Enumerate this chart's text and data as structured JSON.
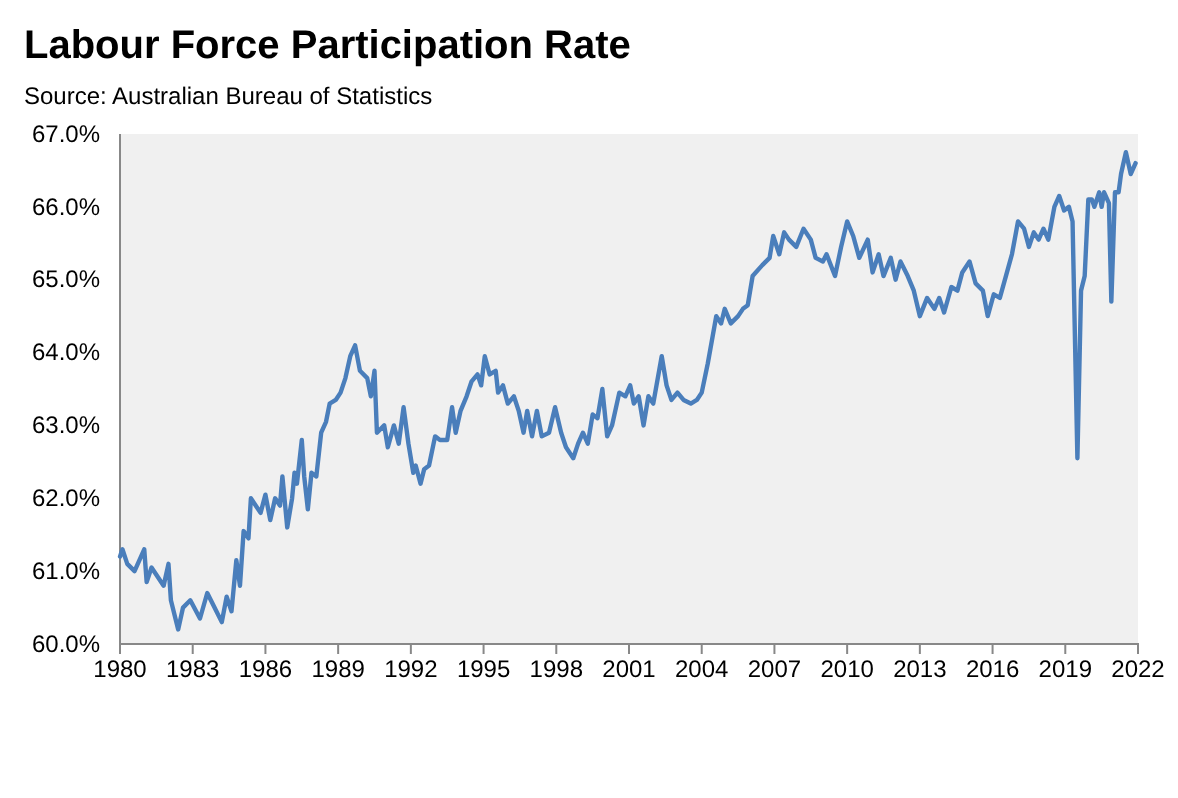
{
  "chart_data": {
    "type": "line",
    "title": "Labour Force Participation Rate",
    "subtitle": "Source: Australian Bureau of Statistics",
    "xlim": [
      1980,
      2022
    ],
    "xticks": [
      1980,
      1983,
      1986,
      1989,
      1992,
      1995,
      1998,
      2001,
      2004,
      2007,
      2010,
      2013,
      2016,
      2019,
      2022
    ],
    "ylim": [
      60,
      67
    ],
    "yticks": [
      {
        "value": 60,
        "label": "60.0%"
      },
      {
        "value": 61,
        "label": "61.0%"
      },
      {
        "value": 62,
        "label": "62.0%"
      },
      {
        "value": 63,
        "label": "63.0%"
      },
      {
        "value": 64,
        "label": "64.0%"
      },
      {
        "value": 65,
        "label": "65.0%"
      },
      {
        "value": 66,
        "label": "66.0%"
      },
      {
        "value": 67,
        "label": "67.0%"
      }
    ],
    "grid": false,
    "marker": "none",
    "line_style": "solid",
    "series": [
      {
        "color": "#4a7ebb",
        "x": [
          1980.0,
          1980.1,
          1980.3,
          1980.6,
          1981.0,
          1981.1,
          1981.3,
          1981.8,
          1982.0,
          1982.1,
          1982.4,
          1982.6,
          1982.9,
          1983.3,
          1983.6,
          1983.9,
          1984.2,
          1984.4,
          1984.6,
          1984.8,
          1984.95,
          1985.1,
          1985.3,
          1985.4,
          1985.8,
          1986.0,
          1986.2,
          1986.4,
          1986.6,
          1986.7,
          1986.9,
          1987.1,
          1987.2,
          1987.3,
          1987.5,
          1987.6,
          1987.75,
          1987.9,
          1988.1,
          1988.3,
          1988.5,
          1988.65,
          1988.9,
          1989.1,
          1989.3,
          1989.5,
          1989.7,
          1989.9,
          1990.2,
          1990.35,
          1990.5,
          1990.6,
          1990.9,
          1991.05,
          1991.3,
          1991.5,
          1991.7,
          1991.9,
          1992.1,
          1992.2,
          1992.4,
          1992.55,
          1992.75,
          1993.0,
          1993.2,
          1993.5,
          1993.7,
          1993.85,
          1994.05,
          1994.3,
          1994.5,
          1994.75,
          1994.9,
          1995.05,
          1995.25,
          1995.5,
          1995.6,
          1995.8,
          1996.0,
          1996.25,
          1996.45,
          1996.65,
          1996.8,
          1997.0,
          1997.2,
          1997.4,
          1997.7,
          1997.95,
          1998.2,
          1998.4,
          1998.7,
          1998.9,
          1999.1,
          1999.3,
          1999.5,
          1999.7,
          1999.9,
          2000.1,
          2000.3,
          2000.6,
          2000.85,
          2001.05,
          2001.2,
          2001.4,
          2001.6,
          2001.8,
          2002.0,
          2002.35,
          2002.55,
          2002.75,
          2003.0,
          2003.25,
          2003.55,
          2003.8,
          2004.0,
          2004.25,
          2004.6,
          2004.8,
          2004.95,
          2005.2,
          2005.5,
          2005.7,
          2005.9,
          2006.1,
          2006.5,
          2006.8,
          2006.95,
          2007.2,
          2007.4,
          2007.6,
          2007.9,
          2008.2,
          2008.5,
          2008.7,
          2009.0,
          2009.15,
          2009.5,
          2009.75,
          2010.0,
          2010.25,
          2010.5,
          2010.85,
          2011.05,
          2011.3,
          2011.5,
          2011.8,
          2012.0,
          2012.2,
          2012.5,
          2012.75,
          2013.0,
          2013.3,
          2013.6,
          2013.8,
          2014.0,
          2014.3,
          2014.55,
          2014.75,
          2015.05,
          2015.3,
          2015.6,
          2015.8,
          2016.05,
          2016.3,
          2016.55,
          2016.8,
          2017.05,
          2017.3,
          2017.5,
          2017.7,
          2017.9,
          2018.1,
          2018.3,
          2018.55,
          2018.75,
          2018.95,
          2019.15,
          2019.3,
          2019.5,
          2019.65,
          2019.8,
          2019.95,
          2020.1,
          2020.2,
          2020.4,
          2020.5,
          2020.6,
          2020.8,
          2020.9,
          2021.05,
          2021.2,
          2021.3,
          2021.5,
          2021.7,
          2021.9
        ],
        "values": [
          61.2,
          61.3,
          61.1,
          61.0,
          61.3,
          60.85,
          61.05,
          60.8,
          61.1,
          60.6,
          60.2,
          60.5,
          60.6,
          60.35,
          60.7,
          60.5,
          60.3,
          60.65,
          60.45,
          61.15,
          60.8,
          61.55,
          61.45,
          62.0,
          61.8,
          62.05,
          61.7,
          62.0,
          61.9,
          62.3,
          61.6,
          62.0,
          62.35,
          62.2,
          62.8,
          62.3,
          61.85,
          62.35,
          62.3,
          62.9,
          63.05,
          63.3,
          63.35,
          63.45,
          63.65,
          63.95,
          64.1,
          63.75,
          63.65,
          63.4,
          63.75,
          62.9,
          63.0,
          62.7,
          63.0,
          62.75,
          63.25,
          62.75,
          62.35,
          62.45,
          62.2,
          62.4,
          62.45,
          62.85,
          62.8,
          62.8,
          63.25,
          62.9,
          63.2,
          63.4,
          63.6,
          63.7,
          63.55,
          63.95,
          63.7,
          63.75,
          63.45,
          63.55,
          63.3,
          63.4,
          63.2,
          62.9,
          63.2,
          62.85,
          63.2,
          62.85,
          62.9,
          63.25,
          62.9,
          62.7,
          62.55,
          62.75,
          62.9,
          62.75,
          63.15,
          63.1,
          63.5,
          62.85,
          63.0,
          63.45,
          63.4,
          63.55,
          63.3,
          63.4,
          63.0,
          63.4,
          63.3,
          63.95,
          63.55,
          63.35,
          63.45,
          63.35,
          63.3,
          63.35,
          63.45,
          63.85,
          64.5,
          64.4,
          64.6,
          64.4,
          64.5,
          64.6,
          64.65,
          65.05,
          65.2,
          65.3,
          65.6,
          65.35,
          65.65,
          65.55,
          65.45,
          65.7,
          65.55,
          65.3,
          65.25,
          65.35,
          65.05,
          65.45,
          65.8,
          65.6,
          65.3,
          65.55,
          65.1,
          65.35,
          65.05,
          65.3,
          65.0,
          65.25,
          65.05,
          64.85,
          64.5,
          64.75,
          64.6,
          64.75,
          64.55,
          64.9,
          64.85,
          65.1,
          65.25,
          64.95,
          64.85,
          64.5,
          64.8,
          64.75,
          65.05,
          65.35,
          65.8,
          65.7,
          65.45,
          65.65,
          65.55,
          65.7,
          65.55,
          66.0,
          66.15,
          65.95,
          66.0,
          65.8,
          62.55,
          64.85,
          65.05,
          66.1,
          66.1,
          66.0,
          66.2,
          66.0,
          66.2,
          66.05,
          64.7,
          66.2,
          66.2,
          66.45,
          66.75,
          66.45,
          66.6
        ]
      }
    ]
  }
}
